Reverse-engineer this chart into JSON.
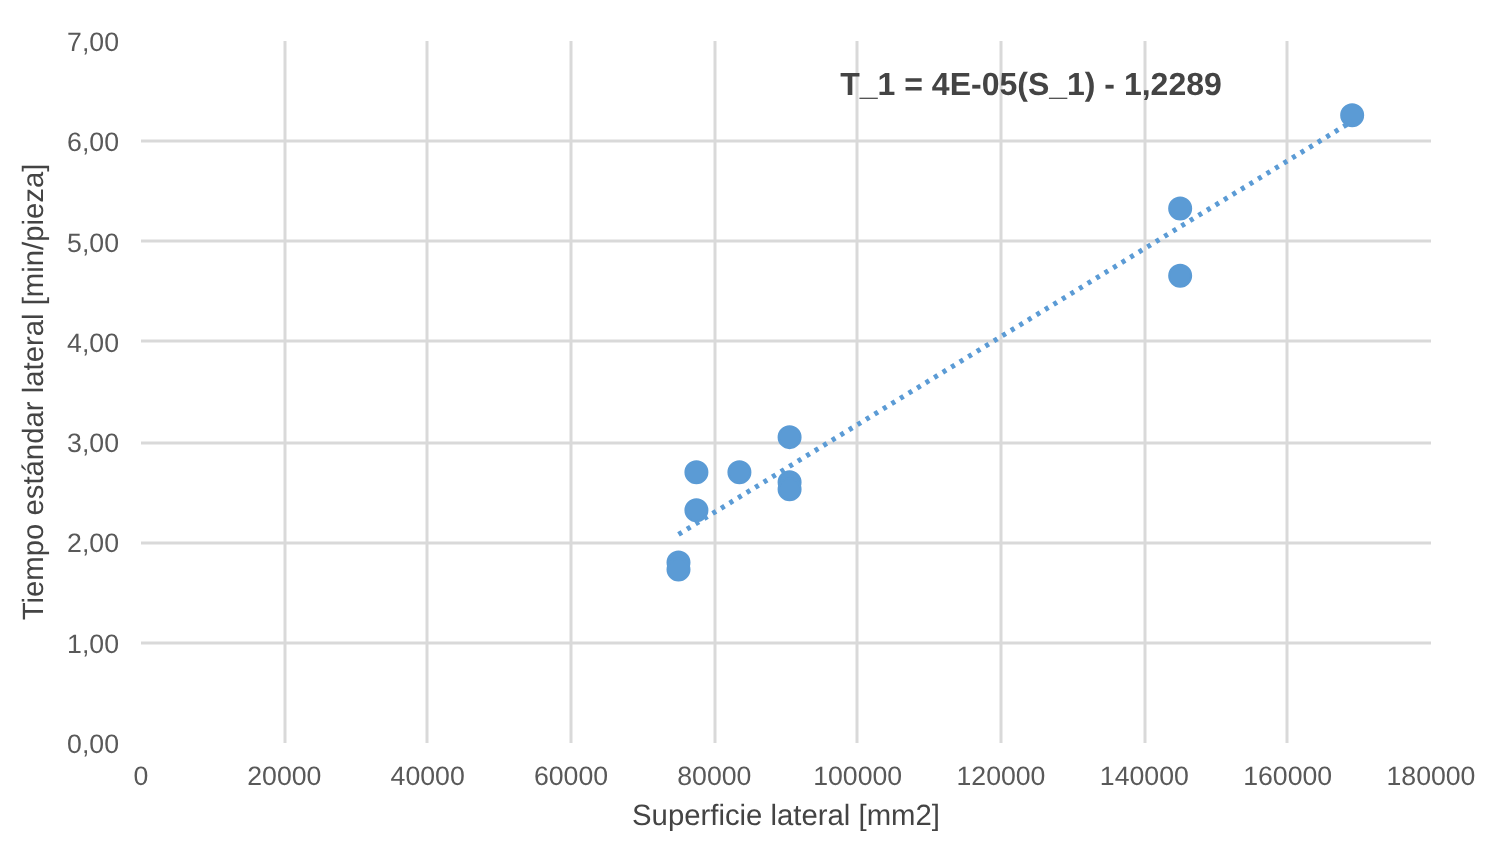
{
  "chart_data": {
    "type": "scatter",
    "xlabel": "Superficie lateral [mm2]",
    "ylabel": "Tiempo estándar lateral [min/pieza]",
    "grid": true,
    "xlim": [
      0,
      180000
    ],
    "xticks": [
      0,
      20000,
      40000,
      60000,
      80000,
      100000,
      120000,
      140000,
      160000,
      180000
    ],
    "ylim": [
      0,
      7
    ],
    "yticks": [
      {
        "value": 0,
        "label": "0,00"
      },
      {
        "value": 1,
        "label": "1,00"
      },
      {
        "value": 2,
        "label": "2,00"
      },
      {
        "value": 3,
        "label": "3,00"
      },
      {
        "value": 4,
        "label": "4,00"
      },
      {
        "value": 5,
        "label": "5,00"
      },
      {
        "value": 6,
        "label": "6,00"
      },
      {
        "value": 7,
        "label": "7,00"
      }
    ],
    "series": [
      {
        "marker": "circle",
        "color": "#5b9bd5",
        "x": [
          75000,
          75000,
          77500,
          77500,
          83500,
          90500,
          90500,
          90500,
          145000,
          145000,
          169000
        ],
        "values": [
          1.8,
          1.73,
          2.7,
          2.32,
          2.7,
          3.05,
          2.6,
          2.53,
          5.33,
          4.66,
          6.26
        ]
      },
      {
        "type": "line",
        "line_style": "dotted",
        "color": "#5b9bd5",
        "x": [
          75000,
          169000
        ],
        "values": [
          2.08,
          6.2
        ]
      }
    ],
    "annotations": [
      "T_1 = 4E-05(S_1) - 1,2289"
    ]
  }
}
